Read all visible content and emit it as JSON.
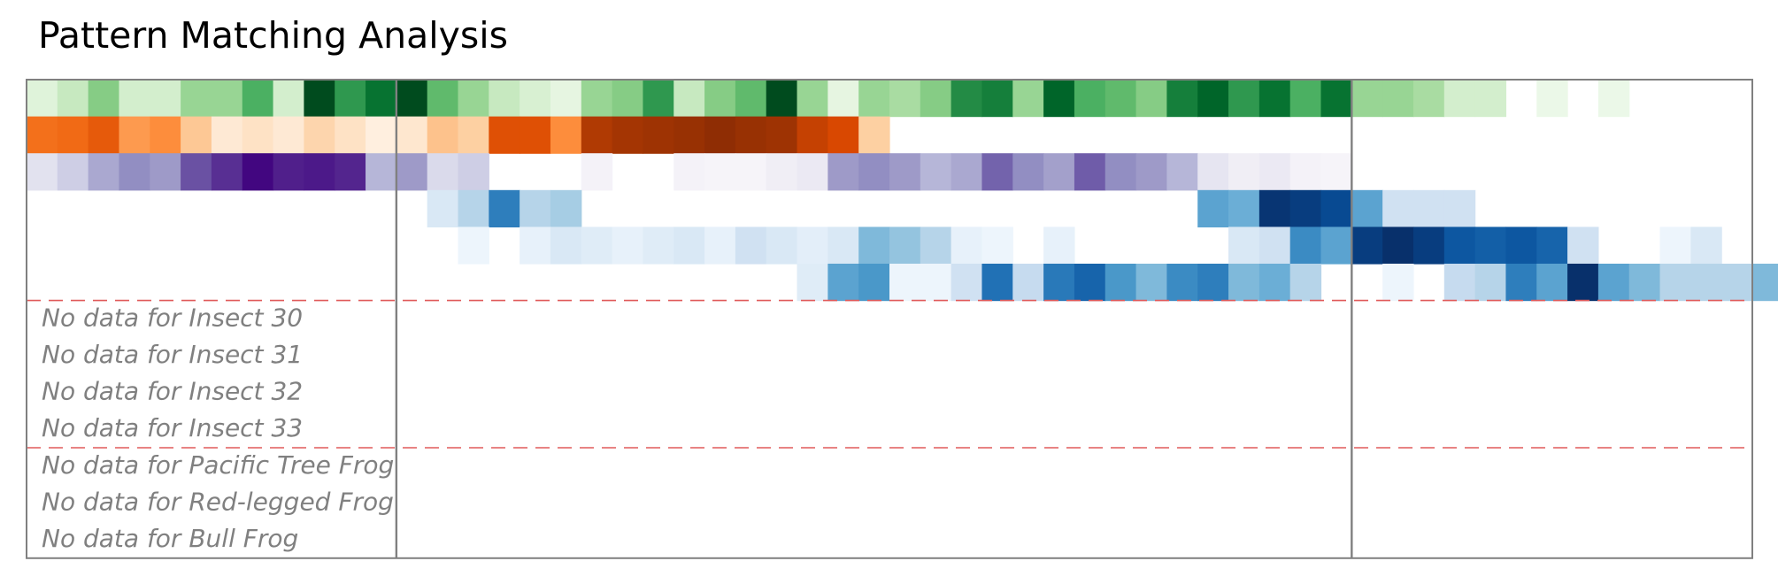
{
  "title": "Pattern Matching Analysis",
  "chart_data": {
    "type": "heatmap",
    "title": "Pattern Matching Analysis",
    "n_columns": 56,
    "panel_dividers_after_column": [
      12,
      43
    ],
    "row_separators_after_row": [
      6,
      10
    ],
    "separator_color": "#e05a5a",
    "rows": [
      {
        "colormap": "Greens",
        "values": [
          0.15,
          0.25,
          0.45,
          0.2,
          0.2,
          0.4,
          0.4,
          0.6,
          0.2,
          0.98,
          0.7,
          0.85,
          0.98,
          0.55,
          0.4,
          0.25,
          0.18,
          0.12,
          0.4,
          0.45,
          0.7,
          0.25,
          0.45,
          0.55,
          0.98,
          0.4,
          0.12,
          0.4,
          0.35,
          0.45,
          0.75,
          0.8,
          0.4,
          0.9,
          0.6,
          0.55,
          0.45,
          0.8,
          0.9,
          0.7,
          0.85,
          0.6,
          0.85,
          0.4,
          0.4,
          0.35,
          0.2,
          0.2,
          0,
          0.08,
          0,
          0.08,
          0,
          0,
          0,
          0
        ]
      },
      {
        "colormap": "Oranges",
        "values": [
          0.6,
          0.62,
          0.68,
          0.45,
          0.5,
          0.28,
          0.1,
          0.15,
          0.1,
          0.22,
          0.15,
          0.05,
          0.12,
          0.3,
          0.25,
          0.72,
          0.72,
          0.5,
          0.85,
          0.88,
          0.9,
          0.92,
          0.95,
          0.92,
          0.9,
          0.8,
          0.75,
          0.25,
          0,
          0,
          0,
          0,
          0,
          0,
          0,
          0,
          0,
          0,
          0,
          0,
          0,
          0,
          0,
          0,
          0,
          0,
          0,
          0,
          0,
          0,
          0,
          0,
          0,
          0,
          0,
          0
        ]
      },
      {
        "colormap": "Purples",
        "values": [
          0.2,
          0.3,
          0.45,
          0.55,
          0.5,
          0.75,
          0.85,
          0.98,
          0.9,
          0.92,
          0.88,
          0.4,
          0.5,
          0.25,
          0.3,
          0,
          0,
          0,
          0.08,
          0,
          0,
          0.08,
          0.06,
          0.06,
          0.12,
          0.15,
          0.5,
          0.55,
          0.5,
          0.4,
          0.45,
          0.7,
          0.55,
          0.48,
          0.72,
          0.55,
          0.5,
          0.4,
          0.18,
          0.12,
          0.15,
          0.08,
          0.06,
          0,
          0,
          0,
          0,
          0,
          0,
          0,
          0,
          0,
          0,
          0,
          0,
          0
        ]
      },
      {
        "colormap": "Blues",
        "values": [
          0,
          0,
          0,
          0,
          0,
          0,
          0,
          0,
          0,
          0,
          0,
          0,
          0,
          0.15,
          0.3,
          0.7,
          0.3,
          0.35,
          0,
          0,
          0,
          0,
          0,
          0,
          0,
          0,
          0,
          0,
          0,
          0,
          0,
          0,
          0,
          0,
          0,
          0,
          0,
          0,
          0.55,
          0.5,
          0.98,
          0.95,
          0.9,
          0.55,
          0.2,
          0.2,
          0.2,
          0,
          0,
          0,
          0,
          0,
          0,
          0,
          0,
          0
        ]
      },
      {
        "colormap": "Blues",
        "values": [
          0,
          0,
          0,
          0,
          0,
          0,
          0,
          0,
          0,
          0,
          0,
          0,
          0,
          0,
          0.05,
          0,
          0.08,
          0.15,
          0.12,
          0.08,
          0.12,
          0.15,
          0.08,
          0.2,
          0.15,
          0.1,
          0.15,
          0.45,
          0.4,
          0.3,
          0.08,
          0.05,
          0,
          0.08,
          0,
          0,
          0,
          0,
          0,
          0.15,
          0.2,
          0.65,
          0.55,
          0.95,
          1,
          0.95,
          0.85,
          0.82,
          0.85,
          0.8,
          0.2,
          0,
          0,
          0.05,
          0.15,
          0
        ]
      },
      {
        "colormap": "Blues",
        "values": [
          0,
          0,
          0,
          0,
          0,
          0,
          0,
          0,
          0,
          0,
          0,
          0,
          0,
          0,
          0,
          0,
          0,
          0,
          0,
          0,
          0,
          0,
          0,
          0,
          0,
          0.12,
          0.55,
          0.6,
          0.05,
          0.05,
          0.2,
          0.75,
          0.25,
          0.72,
          0.8,
          0.6,
          0.45,
          0.65,
          0.7,
          0.45,
          0.5,
          0.3,
          0,
          0,
          0.05,
          0,
          0.25,
          0.3,
          0.7,
          0.55,
          1,
          0.55,
          0.45,
          0.3,
          0.3,
          0.3,
          0.45
        ]
      }
    ],
    "empty_rows": [
      "No data for Insect 30",
      "No data for Insect 31",
      "No data for Insect 32",
      "No data for Insect 33",
      "No data for Pacific Tree Frog",
      "No data for Red-legged Frog",
      "No data for Bull Frog"
    ],
    "colormaps": {
      "Greens": [
        "#f7fcf5",
        "#e5f5e0",
        "#c7e9c0",
        "#a1d99b",
        "#74c476",
        "#41ab5d",
        "#238b45",
        "#006d2c",
        "#00441b"
      ],
      "Oranges": [
        "#fff5eb",
        "#fee6ce",
        "#fdd0a2",
        "#fdae6b",
        "#fd8d3c",
        "#f16913",
        "#d94801",
        "#a63603",
        "#7f2704"
      ],
      "Purples": [
        "#fcfbfd",
        "#efedf5",
        "#dadaeb",
        "#bcbddc",
        "#9e9ac8",
        "#807dba",
        "#6a51a3",
        "#54278f",
        "#3f007d"
      ],
      "Blues": [
        "#f7fbff",
        "#deebf7",
        "#c6dbef",
        "#9ecae1",
        "#6baed6",
        "#4292c6",
        "#2171b5",
        "#08519c",
        "#08306b"
      ]
    }
  }
}
